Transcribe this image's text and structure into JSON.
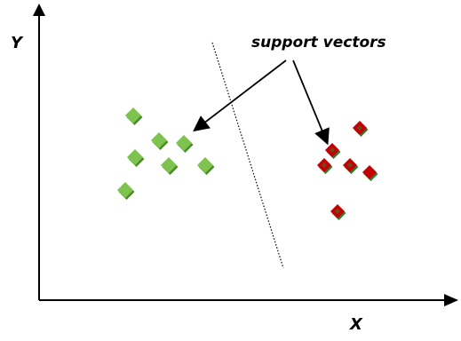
{
  "axes": {
    "y_label": "Y",
    "x_label": "X"
  },
  "annotation": {
    "label": "support vectors"
  },
  "colors": {
    "axis": "#000000",
    "green_face": "#7fc34f",
    "green_dark": "#4a8a2a",
    "red_face": "#c40000",
    "red_dark": "#7a0000",
    "red_light": "#2e7d32"
  }
}
